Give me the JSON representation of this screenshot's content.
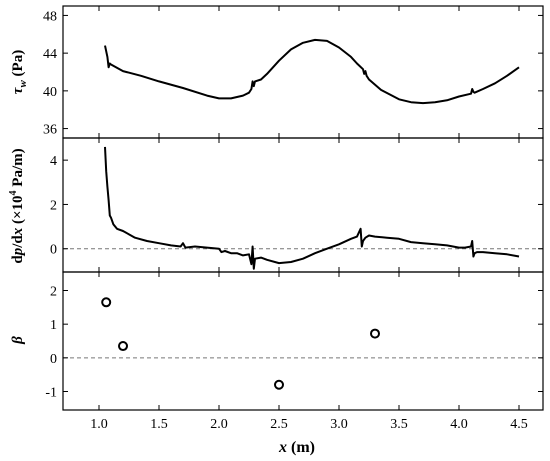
{
  "chart_data": [
    {
      "type": "line",
      "ylabel_symbol": "τ",
      "ylabel_subscript": "w",
      "ylabel_unit": " (Pa)",
      "xlim": [
        0.7,
        4.7
      ],
      "ylim": [
        35,
        49
      ],
      "yticks": [
        36,
        40,
        44,
        48
      ],
      "series": [
        {
          "x": [
            1.05,
            1.07,
            1.08,
            1.09,
            1.1,
            1.2,
            1.35,
            1.5,
            1.7,
            1.9,
            2.0,
            2.1,
            2.2,
            2.25,
            2.27,
            2.28,
            2.29,
            2.3,
            2.35,
            2.4,
            2.5,
            2.6,
            2.7,
            2.8,
            2.9,
            3.0,
            3.1,
            3.15,
            3.2,
            3.21,
            3.22,
            3.23,
            3.25,
            3.35,
            3.5,
            3.6,
            3.7,
            3.8,
            3.9,
            4.0,
            4.1,
            4.11,
            4.12,
            4.13,
            4.2,
            4.3,
            4.4,
            4.5
          ],
          "y": [
            44.8,
            43.6,
            42.5,
            42.9,
            42.8,
            42.1,
            41.6,
            41.0,
            40.3,
            39.5,
            39.2,
            39.2,
            39.5,
            39.8,
            40.2,
            41.0,
            40.5,
            41.0,
            41.2,
            41.8,
            43.2,
            44.4,
            45.1,
            45.4,
            45.3,
            44.6,
            43.6,
            42.9,
            42.3,
            41.8,
            42.1,
            41.6,
            41.2,
            40.1,
            39.1,
            38.8,
            38.7,
            38.8,
            39.0,
            39.4,
            39.7,
            40.2,
            39.9,
            39.8,
            40.2,
            40.8,
            41.6,
            42.5
          ]
        }
      ]
    },
    {
      "type": "line",
      "ylabel_prefix": "d",
      "ylabel_var1": "p",
      "ylabel_mid": "/d",
      "ylabel_var2": "x",
      "ylabel_unit1": " (×10",
      "ylabel_exp": "4",
      "ylabel_unit2": " Pa/m)",
      "xlim": [
        0.7,
        4.7
      ],
      "ylim": [
        -1.05,
        5.0
      ],
      "yticks": [
        0,
        2,
        4
      ],
      "reference_line": 0,
      "series": [
        {
          "x": [
            1.05,
            1.06,
            1.07,
            1.08,
            1.09,
            1.1,
            1.12,
            1.15,
            1.2,
            1.3,
            1.4,
            1.5,
            1.6,
            1.68,
            1.7,
            1.72,
            1.8,
            1.9,
            2.0,
            2.02,
            2.05,
            2.1,
            2.15,
            2.2,
            2.25,
            2.27,
            2.28,
            2.29,
            2.3,
            2.35,
            2.4,
            2.5,
            2.6,
            2.7,
            2.8,
            2.9,
            3.0,
            3.1,
            3.15,
            3.18,
            3.19,
            3.2,
            3.22,
            3.25,
            3.3,
            3.4,
            3.5,
            3.6,
            3.7,
            3.8,
            3.9,
            4.0,
            4.05,
            4.1,
            4.11,
            4.12,
            4.13,
            4.15,
            4.2,
            4.3,
            4.4,
            4.5
          ],
          "y": [
            4.6,
            3.5,
            2.8,
            2.2,
            1.5,
            1.4,
            1.1,
            0.9,
            0.8,
            0.5,
            0.35,
            0.25,
            0.15,
            0.1,
            0.25,
            0.05,
            0.1,
            0.05,
            0.0,
            -0.15,
            -0.1,
            -0.2,
            -0.2,
            -0.3,
            -0.25,
            -0.7,
            0.1,
            -0.9,
            -0.45,
            -0.4,
            -0.5,
            -0.65,
            -0.6,
            -0.45,
            -0.2,
            0.0,
            0.2,
            0.45,
            0.55,
            0.9,
            0.1,
            0.35,
            0.5,
            0.6,
            0.55,
            0.5,
            0.45,
            0.3,
            0.25,
            0.2,
            0.15,
            0.05,
            0.05,
            0.1,
            0.35,
            -0.35,
            -0.2,
            -0.15,
            -0.15,
            -0.2,
            -0.25,
            -0.35
          ]
        }
      ]
    },
    {
      "type": "scatter",
      "ylabel": "β",
      "xlabel_var": "x",
      "xlabel_unit": " (m)",
      "xlim": [
        0.7,
        4.7
      ],
      "ylim": [
        -1.55,
        2.55
      ],
      "yticks": [
        -1,
        0,
        1,
        2
      ],
      "xticks": [
        1.0,
        1.5,
        2.0,
        2.5,
        3.0,
        3.5,
        4.0,
        4.5
      ],
      "xtick_labels": [
        "1.0",
        "1.5",
        "2.0",
        "2.5",
        "3.0",
        "3.5",
        "4.0",
        "4.5"
      ],
      "reference_line": 0,
      "series": [
        {
          "x": [
            1.06,
            1.2,
            2.5,
            3.3
          ],
          "y": [
            1.65,
            0.35,
            -0.8,
            0.72
          ]
        }
      ]
    }
  ]
}
